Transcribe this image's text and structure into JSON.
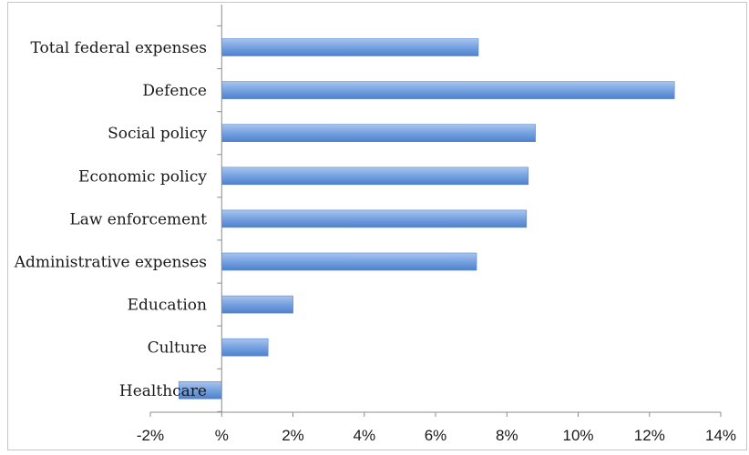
{
  "chart_data": {
    "type": "bar",
    "orientation": "horizontal",
    "title": "",
    "xlabel": "",
    "ylabel": "",
    "categories": [
      "Total federal expenses",
      "Defence",
      "Social policy",
      "Economic policy",
      "Law enforcement",
      "Administrative expenses",
      "Education",
      "Culture",
      "Healthcare"
    ],
    "values": [
      7.2,
      12.7,
      8.8,
      8.6,
      8.55,
      7.15,
      2.0,
      1.3,
      -1.2
    ],
    "xlim": [
      -2,
      14
    ],
    "x_ticks": [
      -2,
      0,
      2,
      4,
      6,
      8,
      10,
      12,
      14
    ],
    "x_tick_labels": [
      "-2%",
      "%",
      "2%",
      "4%",
      "6%",
      "8%",
      "10%",
      "12%",
      "14%"
    ],
    "grid": false,
    "legend": "none",
    "bar_color": "#6f9ee0"
  }
}
